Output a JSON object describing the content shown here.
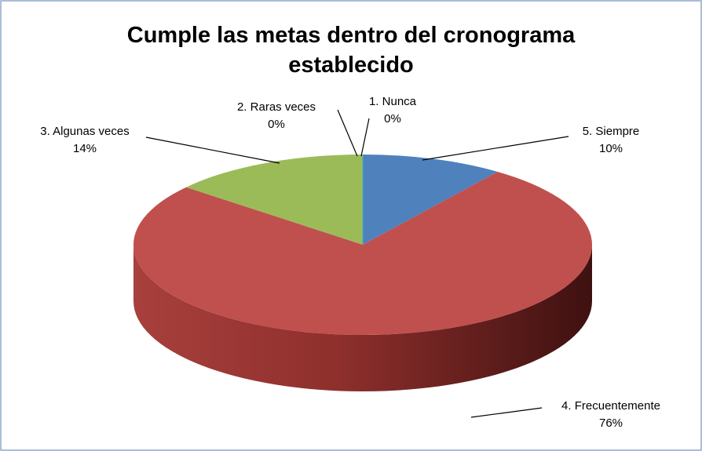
{
  "chart_data": {
    "type": "pie",
    "title": "Cumple las metas dentro del cronograma establecido",
    "categories": [
      "5. Siempre",
      "4. Frecuentemente",
      "3. Algunas veces",
      "2. Raras veces",
      "1. Nunca"
    ],
    "values": [
      10,
      76,
      14,
      0,
      0
    ],
    "value_labels": [
      "10%",
      "76%",
      "14%",
      "0%",
      "0%"
    ],
    "colors": [
      "#4f81bd",
      "#c0504d",
      "#9bbb59",
      "#8064a2",
      "#4bacc6"
    ]
  }
}
